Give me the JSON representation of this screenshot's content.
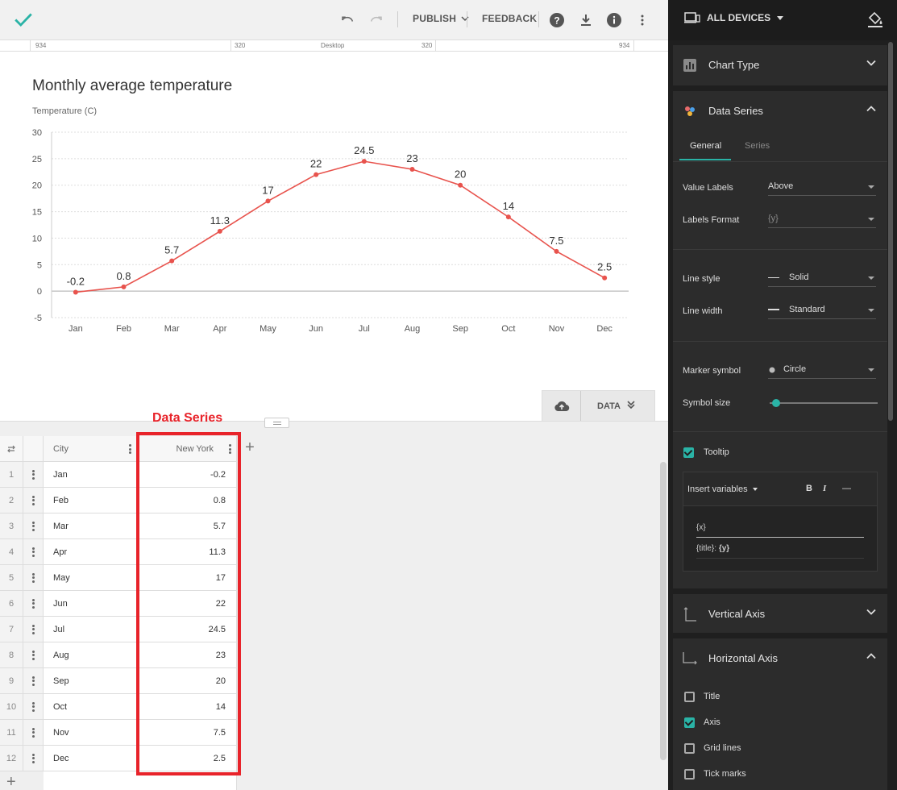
{
  "toolbar": {
    "publish_label": "PUBLISH",
    "feedback_label": "FEEDBACK"
  },
  "ruler": {
    "left_outer": "934",
    "left_inner": "320",
    "center": "Desktop",
    "right_inner": "320",
    "right_outer": "934"
  },
  "chart": {
    "title": "Monthly average temperature",
    "y_axis_title": "Temperature (C)"
  },
  "chart_data": {
    "type": "line",
    "title": "Monthly average temperature",
    "ylabel": "Temperature (C)",
    "xlabel": "",
    "categories": [
      "Jan",
      "Feb",
      "Mar",
      "Apr",
      "May",
      "Jun",
      "Jul",
      "Aug",
      "Sep",
      "Oct",
      "Nov",
      "Dec"
    ],
    "series": [
      {
        "values": [
          -0.2,
          0.8,
          5.7,
          11.3,
          17,
          22,
          24.5,
          23,
          20,
          14,
          7.5,
          2.5
        ],
        "color": "#e8534d"
      }
    ],
    "data_labels": [
      "-0.2",
      "0.8",
      "5.7",
      "11.3",
      "17",
      "22",
      "24.5",
      "23",
      "20",
      "14",
      "7.5",
      "2.5"
    ],
    "ylim": [
      -5,
      30
    ],
    "yticks": [
      "-5",
      "0",
      "5",
      "10",
      "15",
      "20",
      "25",
      "30"
    ],
    "ytick_values": [
      -5,
      0,
      5,
      10,
      15,
      20,
      25,
      30
    ],
    "grid": true,
    "legend": "none"
  },
  "data_tab": {
    "label": "DATA"
  },
  "annotation": {
    "label": "Data Series"
  },
  "table": {
    "headers": {
      "city": "City",
      "value": "New York"
    },
    "rows": [
      {
        "n": "1",
        "city": "Jan",
        "value": "-0.2"
      },
      {
        "n": "2",
        "city": "Feb",
        "value": "0.8"
      },
      {
        "n": "3",
        "city": "Mar",
        "value": "5.7"
      },
      {
        "n": "4",
        "city": "Apr",
        "value": "11.3"
      },
      {
        "n": "5",
        "city": "May",
        "value": "17"
      },
      {
        "n": "6",
        "city": "Jun",
        "value": "22"
      },
      {
        "n": "7",
        "city": "Jul",
        "value": "24.5"
      },
      {
        "n": "8",
        "city": "Aug",
        "value": "23"
      },
      {
        "n": "9",
        "city": "Sep",
        "value": "20"
      },
      {
        "n": "10",
        "city": "Oct",
        "value": "14"
      },
      {
        "n": "11",
        "city": "Nov",
        "value": "7.5"
      },
      {
        "n": "12",
        "city": "Dec",
        "value": "2.5"
      }
    ],
    "add_symbol": "+"
  },
  "panel": {
    "devices_label": "ALL DEVICES",
    "chart_type": {
      "title": "Chart Type"
    },
    "data_series": {
      "title": "Data Series",
      "tabs": [
        "General",
        "Series"
      ],
      "value_labels": {
        "label": "Value Labels",
        "value": "Above"
      },
      "labels_format": {
        "label": "Labels Format",
        "value": "{y}"
      },
      "line_style": {
        "label": "Line style",
        "value": "Solid"
      },
      "line_width": {
        "label": "Line width",
        "value": "Standard"
      },
      "marker_symbol": {
        "label": "Marker symbol",
        "value": "Circle"
      },
      "symbol_size": {
        "label": "Symbol size",
        "level": 0.05
      },
      "tooltip": {
        "label": "Tooltip",
        "checked": true,
        "insert_variables": "Insert variables",
        "bold": "B",
        "italic": "I",
        "strike": "—",
        "line1": "{x}",
        "line2_prefix": "{title}: ",
        "line2_bold": "{y}"
      }
    },
    "vertical_axis": {
      "title": "Vertical Axis"
    },
    "horizontal_axis": {
      "title": "Horizontal Axis",
      "options": [
        {
          "label": "Title",
          "checked": false
        },
        {
          "label": "Axis",
          "checked": true
        },
        {
          "label": "Grid lines",
          "checked": false
        },
        {
          "label": "Tick marks",
          "checked": false
        }
      ]
    }
  },
  "colors": {
    "accent": "#2ab3a6",
    "series": "#e8534d",
    "annotation": "#e8232a",
    "panel_bg": "#1f1f1f"
  }
}
